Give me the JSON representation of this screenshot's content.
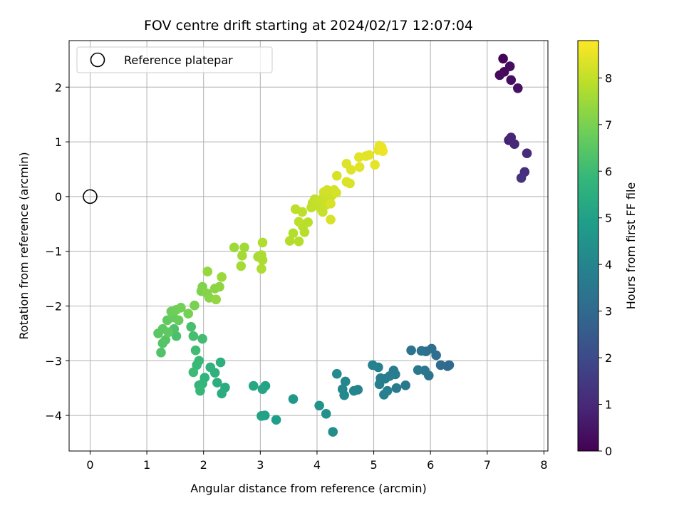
{
  "chart_data": {
    "type": "scatter",
    "title": "FOV centre drift starting at 2024/02/17 12:07:04",
    "xlabel": "Angular distance from reference (arcmin)",
    "ylabel": "Rotation from reference (arcmin)",
    "xlim": [
      -0.37,
      8.07
    ],
    "ylim": [
      -4.65,
      2.85
    ],
    "xticks": [
      0,
      1,
      2,
      3,
      4,
      5,
      6,
      7,
      8
    ],
    "yticks": [
      -4,
      -3,
      -2,
      -1,
      0,
      1,
      2
    ],
    "xtick_labels": [
      "0",
      "1",
      "2",
      "3",
      "4",
      "5",
      "6",
      "7",
      "8"
    ],
    "ytick_labels": [
      "−4",
      "−3",
      "−2",
      "−1",
      "0",
      "1",
      "2"
    ],
    "grid": true,
    "legend": {
      "placement": "upper-left",
      "entries": [
        "Reference platepar"
      ]
    },
    "reference_point": {
      "x": 0,
      "y": 0,
      "marker": "open-circle",
      "color": "#000000"
    },
    "colorbar": {
      "label": "Hours from first FF file",
      "range": [
        0,
        8.8
      ],
      "ticks": [
        0,
        1,
        2,
        3,
        4,
        5,
        6,
        7,
        8
      ],
      "tick_labels": [
        "0",
        "1",
        "2",
        "3",
        "4",
        "5",
        "6",
        "7",
        "8"
      ],
      "colormap": "viridis",
      "stops": [
        "#440154",
        "#482878",
        "#3e4989",
        "#31688e",
        "#26828e",
        "#1f9e89",
        "#35b779",
        "#6ece58",
        "#b5de2b",
        "#fde725"
      ]
    },
    "points_columns": [
      "x",
      "y",
      "hours"
    ],
    "points": [
      [
        7.28,
        2.52,
        0.1
      ],
      [
        7.3,
        2.28,
        0.2
      ],
      [
        7.22,
        2.22,
        0.25
      ],
      [
        7.4,
        2.38,
        0.3
      ],
      [
        7.42,
        2.13,
        0.35
      ],
      [
        7.54,
        1.98,
        0.4
      ],
      [
        7.38,
        1.03,
        0.8
      ],
      [
        7.42,
        1.08,
        0.9
      ],
      [
        7.48,
        0.96,
        1.0
      ],
      [
        7.7,
        0.79,
        1.1
      ],
      [
        7.66,
        0.45,
        1.2
      ],
      [
        7.6,
        0.34,
        1.3
      ],
      [
        6.33,
        -3.08,
        3.0
      ],
      [
        6.3,
        -3.1,
        3.05
      ],
      [
        6.18,
        -3.08,
        3.1
      ],
      [
        6.1,
        -2.9,
        3.15
      ],
      [
        6.02,
        -2.78,
        3.2
      ],
      [
        5.92,
        -2.83,
        3.25
      ],
      [
        5.84,
        -2.82,
        3.3
      ],
      [
        5.66,
        -2.81,
        3.35
      ],
      [
        5.97,
        -3.27,
        3.4
      ],
      [
        5.9,
        -3.18,
        3.45
      ],
      [
        5.78,
        -3.17,
        3.5
      ],
      [
        5.56,
        -3.45,
        3.55
      ],
      [
        5.4,
        -3.5,
        3.6
      ],
      [
        5.38,
        -3.25,
        3.65
      ],
      [
        5.35,
        -3.18,
        3.7
      ],
      [
        5.28,
        -3.28,
        3.72
      ],
      [
        5.2,
        -3.33,
        3.75
      ],
      [
        5.12,
        -3.32,
        3.78
      ],
      [
        5.1,
        -3.43,
        3.8
      ],
      [
        5.24,
        -3.55,
        3.82
      ],
      [
        5.18,
        -3.62,
        3.85
      ],
      [
        5.08,
        -3.12,
        3.88
      ],
      [
        4.98,
        -3.08,
        3.9
      ],
      [
        4.72,
        -3.53,
        3.95
      ],
      [
        4.65,
        -3.55,
        4.0
      ],
      [
        4.5,
        -3.38,
        4.05
      ],
      [
        4.45,
        -3.52,
        4.1
      ],
      [
        4.48,
        -3.63,
        4.15
      ],
      [
        4.35,
        -3.24,
        4.2
      ],
      [
        4.28,
        -4.3,
        4.3
      ],
      [
        4.16,
        -3.97,
        4.4
      ],
      [
        4.04,
        -3.82,
        4.5
      ],
      [
        3.58,
        -3.7,
        4.7
      ],
      [
        3.28,
        -4.08,
        4.9
      ],
      [
        3.08,
        -4.0,
        5.0
      ],
      [
        3.02,
        -4.01,
        5.05
      ],
      [
        3.09,
        -3.46,
        5.1
      ],
      [
        3.04,
        -3.52,
        5.15
      ],
      [
        2.88,
        -3.46,
        5.2
      ],
      [
        2.38,
        -3.49,
        5.4
      ],
      [
        2.32,
        -3.6,
        5.45
      ],
      [
        2.24,
        -3.4,
        5.5
      ],
      [
        2.3,
        -3.03,
        5.55
      ],
      [
        2.2,
        -3.22,
        5.6
      ],
      [
        2.12,
        -3.12,
        5.65
      ],
      [
        2.02,
        -3.31,
        5.7
      ],
      [
        1.98,
        -3.42,
        5.75
      ],
      [
        1.92,
        -3.45,
        5.8
      ],
      [
        1.94,
        -3.55,
        5.85
      ],
      [
        1.88,
        -3.08,
        5.9
      ],
      [
        1.92,
        -3.0,
        5.95
      ],
      [
        1.82,
        -3.21,
        6.0
      ],
      [
        1.86,
        -2.81,
        6.05
      ],
      [
        1.98,
        -2.6,
        6.1
      ],
      [
        1.82,
        -2.55,
        6.15
      ],
      [
        1.78,
        -2.38,
        6.2
      ],
      [
        1.52,
        -2.55,
        6.25
      ],
      [
        1.48,
        -2.42,
        6.3
      ],
      [
        1.25,
        -2.85,
        6.35
      ],
      [
        1.28,
        -2.68,
        6.4
      ],
      [
        1.33,
        -2.62,
        6.45
      ],
      [
        1.2,
        -2.5,
        6.5
      ],
      [
        1.28,
        -2.42,
        6.55
      ],
      [
        1.38,
        -2.48,
        6.6
      ],
      [
        1.36,
        -2.26,
        6.65
      ],
      [
        1.47,
        -2.21,
        6.7
      ],
      [
        1.56,
        -2.26,
        6.75
      ],
      [
        1.43,
        -2.1,
        6.8
      ],
      [
        1.52,
        -2.07,
        6.85
      ],
      [
        1.6,
        -2.03,
        6.9
      ],
      [
        1.73,
        -2.14,
        6.95
      ],
      [
        1.84,
        -1.99,
        7.0
      ],
      [
        1.96,
        -1.73,
        7.05
      ],
      [
        1.98,
        -1.65,
        7.1
      ],
      [
        2.06,
        -1.77,
        7.15
      ],
      [
        2.1,
        -1.85,
        7.2
      ],
      [
        2.2,
        -1.68,
        7.25
      ],
      [
        2.28,
        -1.65,
        7.3
      ],
      [
        2.22,
        -1.88,
        7.35
      ],
      [
        2.07,
        -1.37,
        7.4
      ],
      [
        2.32,
        -1.47,
        7.45
      ],
      [
        2.54,
        -0.93,
        7.5
      ],
      [
        2.72,
        -0.93,
        7.55
      ],
      [
        2.68,
        -1.08,
        7.6
      ],
      [
        2.66,
        -1.27,
        7.62
      ],
      [
        2.96,
        -1.1,
        7.65
      ],
      [
        3.02,
        -1.07,
        7.67
      ],
      [
        3.04,
        -1.16,
        7.7
      ],
      [
        3.02,
        -1.32,
        7.72
      ],
      [
        3.04,
        -0.84,
        7.75
      ],
      [
        3.52,
        -0.81,
        7.78
      ],
      [
        3.58,
        -0.67,
        7.8
      ],
      [
        3.68,
        -0.82,
        7.82
      ],
      [
        3.78,
        -0.65,
        7.84
      ],
      [
        3.75,
        -0.55,
        7.86
      ],
      [
        3.84,
        -0.47,
        7.88
      ],
      [
        3.68,
        -0.46,
        7.9
      ],
      [
        3.62,
        -0.23,
        7.92
      ],
      [
        3.74,
        -0.28,
        7.94
      ],
      [
        3.9,
        -0.2,
        7.96
      ],
      [
        3.92,
        -0.12,
        7.98
      ],
      [
        3.96,
        -0.05,
        8.0
      ],
      [
        4.0,
        -0.1,
        8.02
      ],
      [
        4.06,
        -0.22,
        8.04
      ],
      [
        4.1,
        -0.28,
        8.06
      ],
      [
        4.08,
        -0.05,
        8.08
      ],
      [
        4.16,
        -0.15,
        8.1
      ],
      [
        4.22,
        -0.06,
        8.12
      ],
      [
        4.26,
        0.02,
        8.14
      ],
      [
        4.24,
        0.08,
        8.16
      ],
      [
        4.18,
        0.12,
        8.18
      ],
      [
        4.12,
        0.08,
        8.2
      ],
      [
        4.3,
        0.12,
        8.22
      ],
      [
        4.34,
        0.07,
        8.24
      ],
      [
        4.35,
        0.38,
        8.26
      ],
      [
        4.24,
        -0.13,
        8.28
      ],
      [
        4.24,
        -0.42,
        8.3
      ],
      [
        4.52,
        0.27,
        8.32
      ],
      [
        4.58,
        0.24,
        8.34
      ],
      [
        4.52,
        0.6,
        8.36
      ],
      [
        4.6,
        0.49,
        8.38
      ],
      [
        4.75,
        0.54,
        8.4
      ],
      [
        4.74,
        0.72,
        8.42
      ],
      [
        4.86,
        0.74,
        8.44
      ],
      [
        4.92,
        0.76,
        8.46
      ],
      [
        5.02,
        0.58,
        8.48
      ],
      [
        5.08,
        0.85,
        8.5
      ],
      [
        5.1,
        0.93,
        8.52
      ],
      [
        5.14,
        0.9,
        8.54
      ],
      [
        5.16,
        0.83,
        8.56
      ]
    ]
  }
}
